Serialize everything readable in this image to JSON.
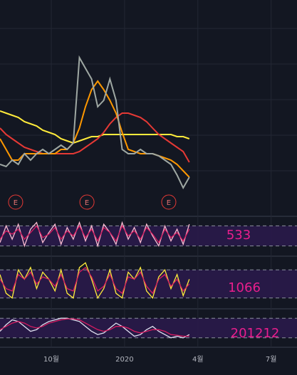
{
  "x": [
    0.9,
    1.15,
    1.4,
    1.65,
    1.9,
    2.15,
    2.4,
    2.65,
    2.9,
    3.15,
    3.4,
    3.65,
    3.9,
    4.15,
    4.4,
    4.65,
    4.9,
    5.15,
    5.4,
    5.65,
    5.9,
    6.15,
    6.4,
    6.65,
    6.9,
    7.15,
    7.4,
    7.65,
    7.9,
    8.15,
    8.4,
    8.65
  ],
  "x_axis": {
    "xlim": [
      0.9,
      13.06
    ],
    "xticks": [
      {
        "value": 3,
        "label": "10월"
      },
      {
        "value": 6,
        "label": "2020"
      },
      {
        "value": 9,
        "label": "4월"
      },
      {
        "value": 12,
        "label": "7월"
      }
    ]
  },
  "chart_data": [
    {
      "type": "line",
      "ylim": [
        0,
        100
      ],
      "events": [
        {
          "x": 1.54,
          "label": "E"
        },
        {
          "x": 4.46,
          "label": "E"
        },
        {
          "x": 7.81,
          "label": "E"
        }
      ],
      "series": [
        {
          "color": "#ffeb3b",
          "values": [
            48,
            47,
            46,
            45,
            43,
            42,
            41,
            39,
            38,
            37,
            35,
            34,
            33,
            34,
            35,
            36,
            36,
            37,
            37,
            37,
            37,
            37,
            37,
            37,
            37,
            37,
            37,
            37,
            37,
            36,
            36,
            35
          ]
        },
        {
          "color": "#e53935",
          "values": [
            40,
            37,
            35,
            33,
            31,
            30,
            29,
            28,
            28,
            28,
            28,
            28,
            28,
            29,
            31,
            33,
            35,
            38,
            42,
            45,
            47,
            47,
            46,
            45,
            43,
            40,
            37,
            35,
            33,
            31,
            29,
            24
          ]
        },
        {
          "color": "#ff9800",
          "values": [
            35,
            30,
            25,
            25,
            28,
            28,
            28,
            28,
            28,
            28,
            30,
            30,
            33,
            40,
            50,
            58,
            62,
            58,
            53,
            47,
            38,
            30,
            29,
            28,
            28,
            28,
            27,
            26,
            25,
            23,
            20,
            17
          ]
        },
        {
          "color": "#9fa8a3",
          "values": [
            23,
            22,
            25,
            23,
            28,
            25,
            28,
            30,
            28,
            30,
            32,
            30,
            33,
            73,
            68,
            63,
            50,
            53,
            63,
            53,
            30,
            28,
            28,
            30,
            28,
            28,
            27,
            25,
            23,
            18,
            12,
            17
          ]
        }
      ]
    },
    {
      "type": "line",
      "ylim": [
        0,
        100
      ],
      "levels": [
        20,
        80
      ],
      "label": "533",
      "series": [
        {
          "color": "#f8bbd0",
          "values": [
            30,
            80,
            40,
            85,
            20,
            70,
            90,
            30,
            60,
            85,
            25,
            75,
            40,
            90,
            35,
            80,
            20,
            85,
            60,
            25,
            90,
            40,
            75,
            30,
            85,
            50,
            20,
            80,
            35,
            70,
            25,
            85
          ]
        },
        {
          "color": "#d81b60",
          "values": [
            40,
            65,
            55,
            70,
            40,
            60,
            80,
            45,
            55,
            75,
            40,
            65,
            50,
            80,
            45,
            70,
            35,
            75,
            60,
            35,
            80,
            50,
            65,
            40,
            75,
            55,
            30,
            70,
            45,
            60,
            35,
            70
          ]
        }
      ]
    },
    {
      "type": "line",
      "ylim": [
        0,
        100
      ],
      "levels": [
        20,
        80
      ],
      "label": "1066",
      "series": [
        {
          "color": "#ffeb3b",
          "values": [
            70,
            30,
            20,
            80,
            60,
            85,
            40,
            75,
            60,
            35,
            80,
            30,
            20,
            85,
            95,
            60,
            20,
            40,
            80,
            30,
            20,
            75,
            60,
            85,
            35,
            20,
            65,
            80,
            40,
            70,
            25,
            60
          ]
        },
        {
          "color": "#d81b60",
          "values": [
            60,
            40,
            35,
            70,
            60,
            75,
            50,
            65,
            60,
            45,
            70,
            40,
            35,
            75,
            85,
            65,
            35,
            45,
            70,
            40,
            30,
            65,
            60,
            75,
            45,
            30,
            60,
            70,
            45,
            60,
            35,
            50
          ]
        }
      ]
    },
    {
      "type": "line",
      "ylim": [
        0,
        100
      ],
      "levels": [
        20,
        80
      ],
      "label": "201212",
      "series": [
        {
          "color": "#e0e0f0",
          "values": [
            40,
            60,
            75,
            70,
            55,
            40,
            45,
            60,
            70,
            75,
            80,
            80,
            75,
            70,
            55,
            40,
            30,
            35,
            50,
            65,
            55,
            40,
            25,
            30,
            45,
            55,
            40,
            30,
            20,
            25,
            20,
            30
          ]
        },
        {
          "color": "#d81b60",
          "values": [
            45,
            55,
            65,
            70,
            65,
            55,
            50,
            55,
            65,
            70,
            75,
            78,
            78,
            75,
            65,
            55,
            45,
            40,
            45,
            55,
            55,
            50,
            40,
            35,
            40,
            45,
            45,
            40,
            30,
            28,
            25,
            25
          ]
        }
      ]
    }
  ]
}
